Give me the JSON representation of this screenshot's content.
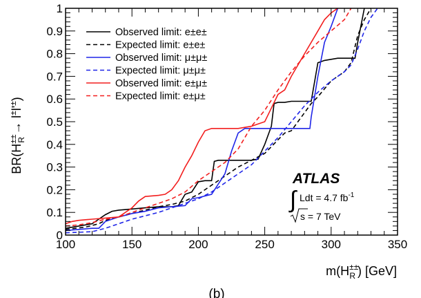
{
  "chart_data": {
    "type": "line",
    "xlabel_base": "m(H",
    "xlabel_sup": "±±",
    "xlabel_sub": "R",
    "xlabel_tail": ") [GeV]",
    "ylabel_base": "BR(H",
    "ylabel_sup": "±±",
    "ylabel_sub": "R",
    "ylabel_tail": "→ l",
    "ylabel_sup2": "±",
    "ylabel_tail2": "l'",
    "ylabel_sup3": "±",
    "ylabel_tail3": ")",
    "xlim": [
      100,
      350
    ],
    "ylim": [
      0,
      1
    ],
    "x_ticks": [
      "100",
      "150",
      "200",
      "250",
      "300",
      "350"
    ],
    "y_ticks": [
      "0",
      "0.1",
      "0.2",
      "0.3",
      "0.4",
      "0.5",
      "0.6",
      "0.7",
      "0.8",
      "0.9",
      "1"
    ],
    "legend_position": "top-left",
    "atlas_label": "ATLAS",
    "lumi_text": "Ldt = 4.7 fb",
    "lumi_sup": "-1",
    "energy_text": "s = 7 TeV",
    "panel_label": "(b)",
    "series": [
      {
        "name": "Observed limit: e±e±",
        "color": "#000000",
        "dashed": false,
        "x": [
          100,
          110,
          120,
          125,
          130,
          135,
          140,
          150,
          160,
          170,
          180,
          185,
          190,
          195,
          200,
          205,
          210,
          212,
          215,
          220,
          225,
          230,
          235,
          240,
          245,
          250,
          255,
          257,
          260,
          265,
          270,
          280,
          285,
          290,
          295,
          300,
          305,
          310,
          315,
          318,
          320,
          325
        ],
        "y": [
          0.03,
          0.04,
          0.05,
          0.07,
          0.09,
          0.105,
          0.11,
          0.115,
          0.12,
          0.125,
          0.125,
          0.13,
          0.18,
          0.19,
          0.235,
          0.24,
          0.24,
          0.325,
          0.33,
          0.33,
          0.33,
          0.33,
          0.33,
          0.33,
          0.335,
          0.4,
          0.48,
          0.58,
          0.585,
          0.585,
          0.59,
          0.59,
          0.59,
          0.76,
          0.77,
          0.775,
          0.78,
          0.78,
          0.78,
          0.78,
          0.85,
          1.0
        ]
      },
      {
        "name": "Expected limit: e±e±",
        "color": "#000000",
        "dashed": true,
        "x": [
          100,
          115,
          125,
          130,
          140,
          150,
          160,
          170,
          180,
          190,
          200,
          210,
          220,
          230,
          240,
          250,
          255,
          260,
          265,
          270,
          275,
          280,
          285,
          290,
          300,
          310,
          315,
          320,
          325,
          330
        ],
        "y": [
          0.025,
          0.035,
          0.05,
          0.065,
          0.08,
          0.095,
          0.11,
          0.125,
          0.135,
          0.15,
          0.18,
          0.22,
          0.26,
          0.3,
          0.33,
          0.36,
          0.39,
          0.42,
          0.45,
          0.46,
          0.5,
          0.54,
          0.58,
          0.61,
          0.68,
          0.72,
          0.76,
          0.88,
          0.95,
          1.0
        ]
      },
      {
        "name": "Observed limit: μ±μ±",
        "color": "#1f25e8",
        "dashed": false,
        "x": [
          100,
          110,
          120,
          125,
          130,
          140,
          150,
          160,
          170,
          180,
          190,
          195,
          200,
          210,
          220,
          225,
          230,
          235,
          240,
          250,
          260,
          270,
          275,
          280,
          284,
          285,
          290,
          295,
          300,
          305
        ],
        "y": [
          0.02,
          0.025,
          0.03,
          0.03,
          0.06,
          0.08,
          0.095,
          0.105,
          0.12,
          0.125,
          0.13,
          0.16,
          0.165,
          0.18,
          0.27,
          0.37,
          0.45,
          0.47,
          0.47,
          0.47,
          0.47,
          0.47,
          0.47,
          0.47,
          0.47,
          0.52,
          0.7,
          0.85,
          0.92,
          1.0
        ]
      },
      {
        "name": "Expected limit: μ±μ±",
        "color": "#1f25e8",
        "dashed": true,
        "x": [
          100,
          120,
          130,
          140,
          150,
          160,
          170,
          180,
          190,
          200,
          210,
          220,
          230,
          240,
          250,
          260,
          270,
          280,
          290,
          300,
          310,
          315,
          320,
          325,
          330,
          335
        ],
        "y": [
          0.01,
          0.015,
          0.03,
          0.05,
          0.07,
          0.085,
          0.1,
          0.12,
          0.14,
          0.16,
          0.19,
          0.23,
          0.27,
          0.31,
          0.37,
          0.43,
          0.5,
          0.57,
          0.63,
          0.68,
          0.72,
          0.75,
          0.82,
          0.9,
          0.96,
          1.0
        ]
      },
      {
        "name": "Observed limit: e±μ±",
        "color": "#f21e1e",
        "dashed": false,
        "x": [
          100,
          105,
          110,
          120,
          130,
          140,
          150,
          155,
          160,
          170,
          175,
          180,
          185,
          190,
          195,
          200,
          205,
          210,
          220,
          230,
          240,
          245,
          250,
          255,
          260,
          265,
          270,
          280,
          290,
          295,
          300,
          305
        ],
        "y": [
          0.05,
          0.06,
          0.065,
          0.07,
          0.075,
          0.08,
          0.12,
          0.15,
          0.17,
          0.175,
          0.18,
          0.2,
          0.24,
          0.3,
          0.35,
          0.41,
          0.46,
          0.47,
          0.47,
          0.47,
          0.48,
          0.49,
          0.5,
          0.56,
          0.62,
          0.64,
          0.7,
          0.8,
          0.9,
          0.95,
          0.98,
          1.0
        ]
      },
      {
        "name": "Expected limit: e±μ±",
        "color": "#f21e1e",
        "dashed": true,
        "x": [
          100,
          110,
          120,
          130,
          140,
          150,
          160,
          170,
          180,
          190,
          200,
          210,
          220,
          230,
          240,
          250,
          260,
          270,
          280,
          290,
          300,
          310,
          315
        ],
        "y": [
          0.04,
          0.045,
          0.055,
          0.07,
          0.08,
          0.1,
          0.12,
          0.14,
          0.16,
          0.19,
          0.24,
          0.28,
          0.32,
          0.38,
          0.48,
          0.55,
          0.64,
          0.72,
          0.79,
          0.85,
          0.9,
          0.95,
          1.0
        ]
      }
    ]
  }
}
